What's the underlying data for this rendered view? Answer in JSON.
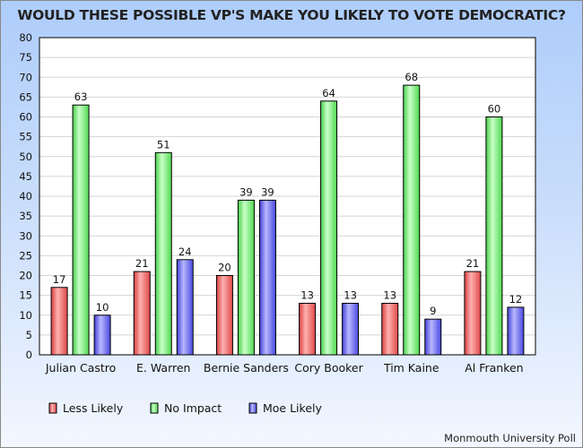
{
  "chart_data": {
    "type": "bar",
    "title": "WOULD THESE POSSIBLE VP'S MAKE YOU LIKELY TO VOTE DEMOCRATIC?",
    "categories": [
      "Julian Castro",
      "E. Warren",
      "Bernie Sanders",
      "Cory Booker",
      "Tim Kaine",
      "Al Franken"
    ],
    "series": [
      {
        "name": "Less Likely",
        "values": [
          17,
          21,
          20,
          13,
          13,
          21
        ],
        "color": "#f06060"
      },
      {
        "name": "No Impact",
        "values": [
          63,
          51,
          39,
          64,
          68,
          60
        ],
        "color": "#70f070"
      },
      {
        "name": "Moe Likely",
        "values": [
          10,
          24,
          39,
          13,
          9,
          12
        ],
        "color": "#6868f0"
      }
    ],
    "ylim": [
      0,
      80
    ],
    "yticks": [
      0,
      5,
      10,
      15,
      20,
      25,
      30,
      35,
      40,
      45,
      50,
      55,
      60,
      65,
      70,
      75,
      80
    ],
    "grid": true,
    "legend": "bottom",
    "xlabel": "",
    "ylabel": ""
  },
  "source": "Monmouth University Poll"
}
